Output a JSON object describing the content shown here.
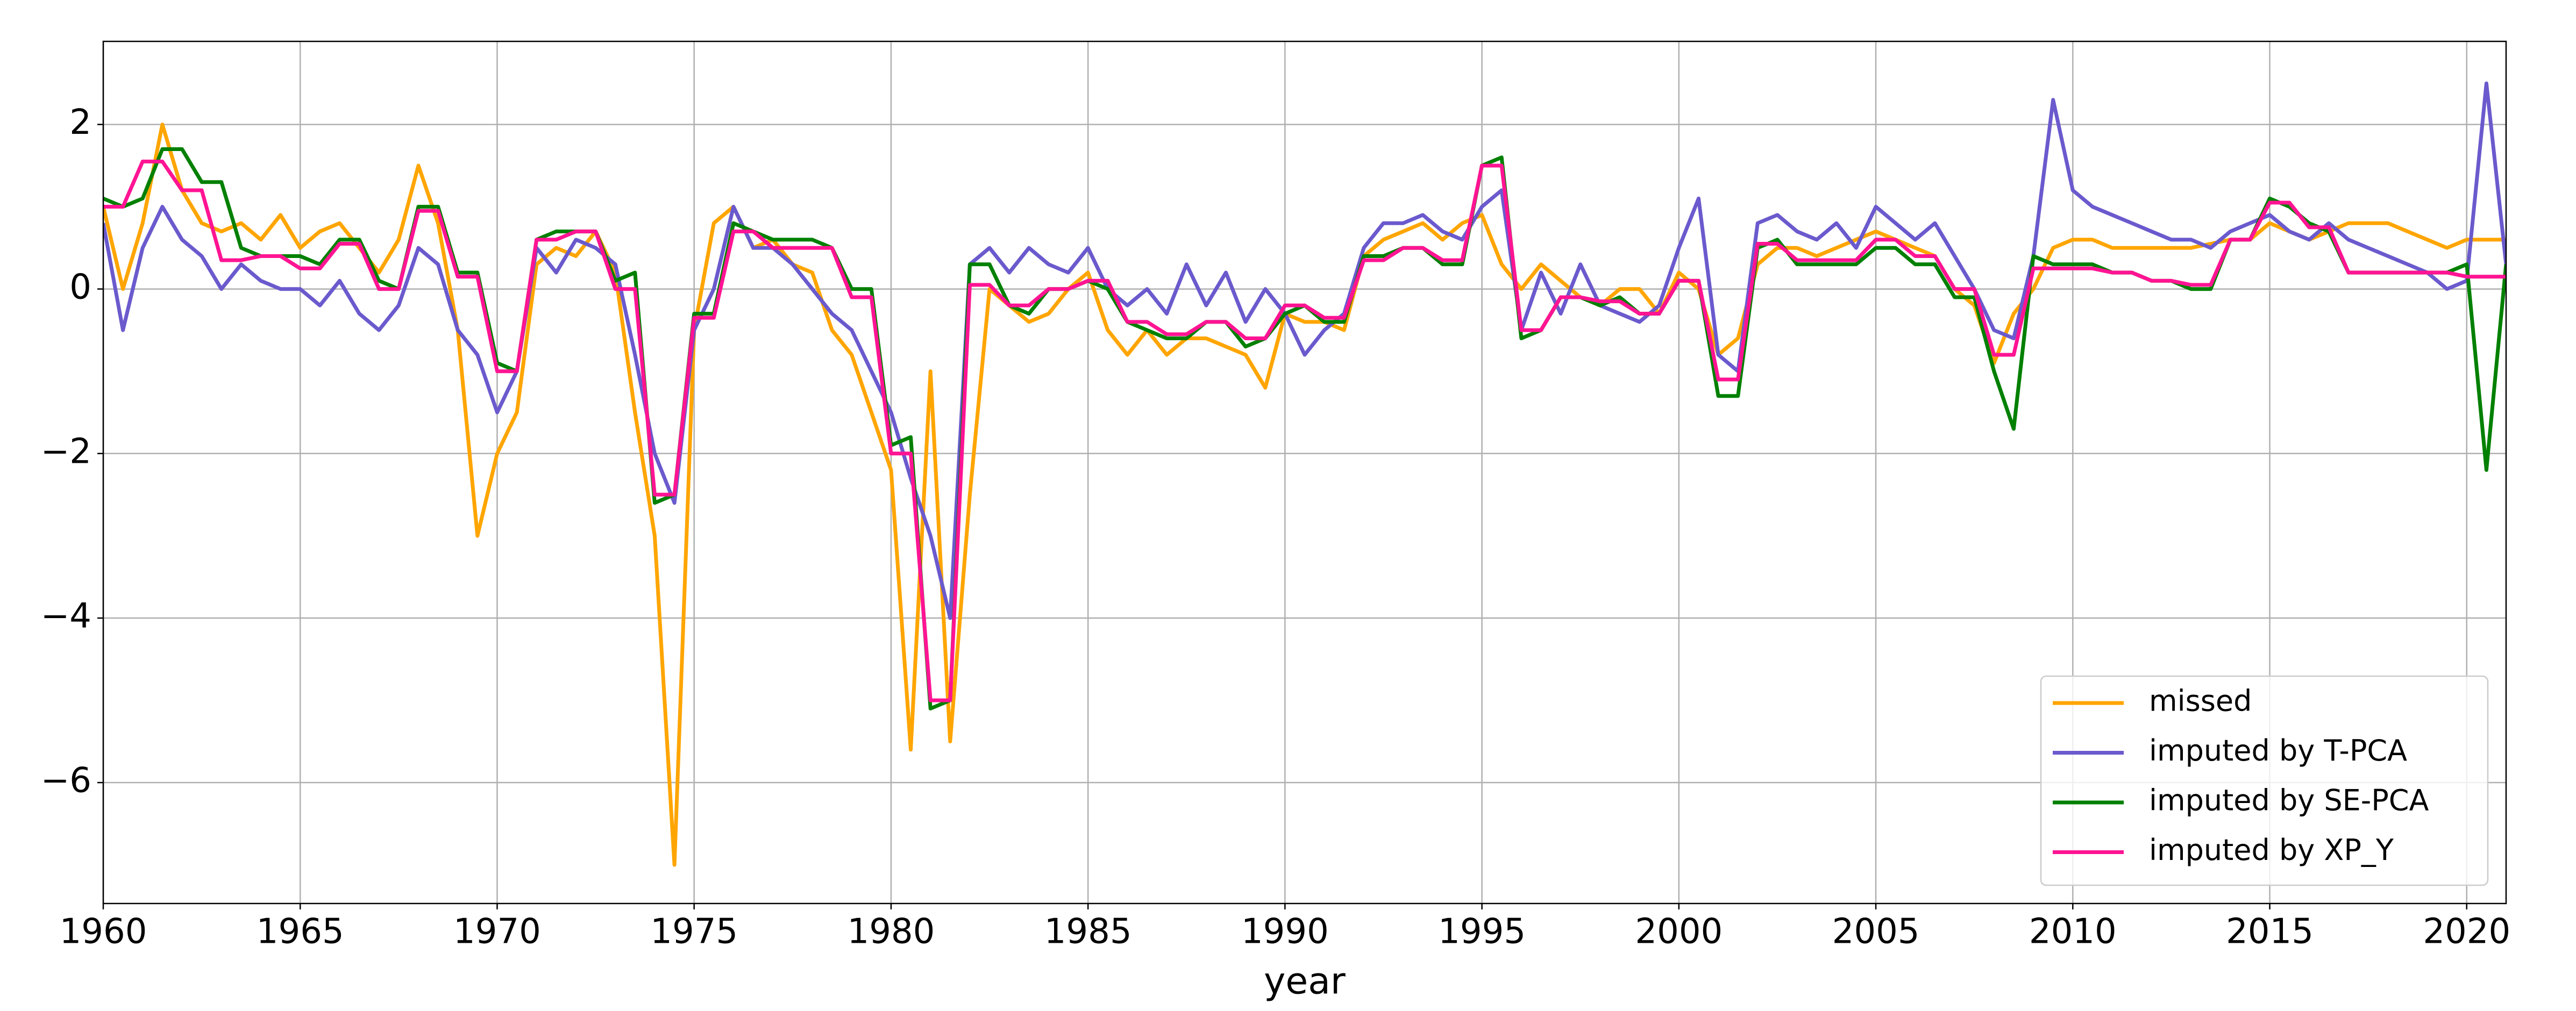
{
  "chart_data": {
    "type": "line",
    "xlabel": "year",
    "xlim": [
      1960,
      2021
    ],
    "ylim": [
      -7.47,
      3.01
    ],
    "xticks": [
      1960,
      1965,
      1970,
      1975,
      1980,
      1985,
      1990,
      1995,
      2000,
      2005,
      2010,
      2015,
      2020
    ],
    "yticks": [
      {
        "value": -6,
        "label": "−6"
      },
      {
        "value": -4,
        "label": "−4"
      },
      {
        "value": -2,
        "label": "−2"
      },
      0,
      2
    ],
    "grid": true,
    "legend": "lower right",
    "x": [
      1960,
      1960.5,
      1961,
      1961.5,
      1962,
      1962.5,
      1963,
      1963.5,
      1964,
      1964.5,
      1965,
      1965.5,
      1966,
      1966.5,
      1967,
      1967.5,
      1968,
      1968.5,
      1969,
      1969.5,
      1970,
      1970.5,
      1971,
      1971.5,
      1972,
      1972.5,
      1973,
      1973.5,
      1974,
      1974.5,
      1975,
      1975.5,
      1976,
      1976.5,
      1977,
      1977.5,
      1978,
      1978.5,
      1979,
      1979.5,
      1980,
      1980.5,
      1981,
      1981.5,
      1982,
      1982.5,
      1983,
      1983.5,
      1984,
      1984.5,
      1985,
      1985.5,
      1986,
      1986.5,
      1987,
      1987.5,
      1988,
      1988.5,
      1989,
      1989.5,
      1990,
      1990.5,
      1991,
      1991.5,
      1992,
      1992.5,
      1993,
      1993.5,
      1994,
      1994.5,
      1995,
      1995.5,
      1996,
      1996.5,
      1997,
      1997.5,
      1998,
      1998.5,
      1999,
      1999.5,
      2000,
      2000.5,
      2001,
      2001.5,
      2002,
      2002.5,
      2003,
      2003.5,
      2004,
      2004.5,
      2005,
      2005.5,
      2006,
      2006.5,
      2007,
      2007.5,
      2008,
      2008.5,
      2009,
      2009.5,
      2010,
      2010.5,
      2011,
      2011.5,
      2012,
      2012.5,
      2013,
      2013.5,
      2014,
      2014.5,
      2015,
      2015.5,
      2016,
      2016.5,
      2017,
      2017.5,
      2018,
      2018.5,
      2019,
      2019.5,
      2020,
      2020.5,
      2021
    ],
    "series": [
      {
        "name": "missed",
        "color": "#ffa500",
        "values": [
          1.0,
          0.0,
          0.8,
          2.0,
          1.2,
          0.8,
          0.7,
          0.8,
          0.6,
          0.9,
          0.5,
          0.7,
          0.8,
          0.5,
          0.2,
          0.6,
          1.5,
          0.8,
          -0.5,
          -3.0,
          -2.0,
          -1.5,
          0.3,
          0.5,
          0.4,
          0.7,
          0.2,
          -1.5,
          -3.0,
          -7.0,
          -0.5,
          0.8,
          1.0,
          0.5,
          0.6,
          0.3,
          0.2,
          -0.5,
          -0.8,
          -1.5,
          -2.2,
          -5.6,
          -1.0,
          -5.5,
          -2.5,
          0.0,
          -0.2,
          -0.4,
          -0.3,
          0.0,
          0.2,
          -0.5,
          -0.8,
          -0.5,
          -0.8,
          -0.6,
          -0.6,
          -0.7,
          -0.8,
          -1.2,
          -0.3,
          -0.4,
          -0.4,
          -0.5,
          0.4,
          0.6,
          0.7,
          0.8,
          0.6,
          0.8,
          0.9,
          0.3,
          0.0,
          0.3,
          0.1,
          -0.1,
          -0.2,
          0.0,
          0.0,
          -0.3,
          0.2,
          0.0,
          -0.8,
          -0.6,
          0.3,
          0.5,
          0.5,
          0.4,
          0.5,
          0.6,
          0.7,
          0.6,
          0.5,
          0.4,
          0.0,
          -0.2,
          -0.9,
          -0.3,
          0.0,
          0.5,
          0.6,
          0.6,
          0.5,
          0.5,
          0.5,
          0.5,
          0.5,
          0.55,
          0.6,
          0.6,
          0.8,
          0.7,
          0.6,
          0.7,
          0.8,
          0.8,
          0.8,
          0.7,
          0.6,
          0.5,
          0.6,
          0.6,
          0.6
        ]
      },
      {
        "name": "imputed by T-PCA",
        "color": "#6a5acd",
        "values": [
          0.8,
          -0.5,
          0.5,
          1.0,
          0.6,
          0.4,
          0.0,
          0.3,
          0.1,
          0.0,
          0.0,
          -0.2,
          0.1,
          -0.3,
          -0.5,
          -0.2,
          0.5,
          0.3,
          -0.5,
          -0.8,
          -1.5,
          -1.0,
          0.5,
          0.2,
          0.6,
          0.5,
          0.3,
          -0.8,
          -2.0,
          -2.6,
          -0.5,
          0.0,
          1.0,
          0.5,
          0.5,
          0.3,
          0.0,
          -0.3,
          -0.5,
          -1.0,
          -1.5,
          -2.3,
          -3.0,
          -4.0,
          0.3,
          0.5,
          0.2,
          0.5,
          0.3,
          0.2,
          0.5,
          0.0,
          -0.2,
          0.0,
          -0.3,
          0.3,
          -0.2,
          0.2,
          -0.4,
          0.0,
          -0.3,
          -0.8,
          -0.5,
          -0.3,
          0.5,
          0.8,
          0.8,
          0.9,
          0.7,
          0.6,
          1.0,
          1.2,
          -0.5,
          0.2,
          -0.3,
          0.3,
          -0.2,
          -0.3,
          -0.4,
          -0.2,
          0.5,
          1.1,
          -0.8,
          -1.0,
          0.8,
          0.9,
          0.7,
          0.6,
          0.8,
          0.5,
          1.0,
          0.8,
          0.6,
          0.8,
          0.4,
          0.0,
          -0.5,
          -0.6,
          0.4,
          2.3,
          1.2,
          1.0,
          0.9,
          0.8,
          0.7,
          0.6,
          0.6,
          0.5,
          0.7,
          0.8,
          0.9,
          0.7,
          0.6,
          0.8,
          0.6,
          0.5,
          0.4,
          0.3,
          0.2,
          0.0,
          0.1,
          2.5,
          0.3
        ]
      },
      {
        "name": "imputed by SE-PCA",
        "color": "#008000",
        "values": [
          1.1,
          1.0,
          1.1,
          1.7,
          1.7,
          1.3,
          1.3,
          0.5,
          0.4,
          0.4,
          0.4,
          0.3,
          0.6,
          0.6,
          0.1,
          0.0,
          1.0,
          1.0,
          0.2,
          0.2,
          -0.9,
          -1.0,
          0.6,
          0.7,
          0.7,
          0.7,
          0.1,
          0.2,
          -2.6,
          -2.5,
          -0.3,
          -0.3,
          0.8,
          0.7,
          0.6,
          0.6,
          0.6,
          0.5,
          0.0,
          0.0,
          -1.9,
          -1.8,
          -5.1,
          -5.0,
          0.3,
          0.3,
          -0.2,
          -0.3,
          0.0,
          0.0,
          0.1,
          0.0,
          -0.4,
          -0.5,
          -0.6,
          -0.6,
          -0.4,
          -0.4,
          -0.7,
          -0.6,
          -0.3,
          -0.2,
          -0.4,
          -0.4,
          0.4,
          0.4,
          0.5,
          0.5,
          0.3,
          0.3,
          1.5,
          1.6,
          -0.6,
          -0.5,
          -0.1,
          -0.1,
          -0.2,
          -0.1,
          -0.3,
          -0.3,
          0.1,
          0.1,
          -1.3,
          -1.3,
          0.5,
          0.6,
          0.3,
          0.3,
          0.3,
          0.3,
          0.5,
          0.5,
          0.3,
          0.3,
          -0.1,
          -0.1,
          -1.0,
          -1.7,
          0.4,
          0.3,
          0.3,
          0.3,
          0.2,
          0.2,
          0.1,
          0.1,
          0.0,
          0.0,
          0.6,
          0.6,
          1.1,
          1.0,
          0.8,
          0.7,
          0.2,
          0.2,
          0.2,
          0.2,
          0.2,
          0.2,
          0.3,
          -2.2,
          0.3
        ]
      },
      {
        "name": "imputed by XP_Y",
        "color": "#ff1493",
        "values": [
          1.0,
          1.0,
          1.55,
          1.55,
          1.2,
          1.2,
          0.35,
          0.35,
          0.4,
          0.4,
          0.25,
          0.25,
          0.55,
          0.55,
          0.0,
          0.0,
          0.95,
          0.95,
          0.15,
          0.15,
          -1.0,
          -1.0,
          0.6,
          0.6,
          0.7,
          0.7,
          0.0,
          0.0,
          -2.5,
          -2.5,
          -0.35,
          -0.35,
          0.7,
          0.7,
          0.5,
          0.5,
          0.5,
          0.5,
          -0.1,
          -0.1,
          -2.0,
          -2.0,
          -5.0,
          -5.0,
          0.05,
          0.05,
          -0.2,
          -0.2,
          0.0,
          0.0,
          0.1,
          0.1,
          -0.4,
          -0.4,
          -0.55,
          -0.55,
          -0.4,
          -0.4,
          -0.6,
          -0.6,
          -0.2,
          -0.2,
          -0.35,
          -0.35,
          0.35,
          0.35,
          0.5,
          0.5,
          0.35,
          0.35,
          1.5,
          1.5,
          -0.5,
          -0.5,
          -0.1,
          -0.1,
          -0.15,
          -0.15,
          -0.3,
          -0.3,
          0.1,
          0.1,
          -1.1,
          -1.1,
          0.55,
          0.55,
          0.35,
          0.35,
          0.35,
          0.35,
          0.6,
          0.6,
          0.4,
          0.4,
          0.0,
          0.0,
          -0.8,
          -0.8,
          0.25,
          0.25,
          0.25,
          0.25,
          0.2,
          0.2,
          0.1,
          0.1,
          0.05,
          0.05,
          0.6,
          0.6,
          1.05,
          1.05,
          0.75,
          0.75,
          0.2,
          0.2,
          0.2,
          0.2,
          0.2,
          0.2,
          0.15,
          0.15,
          0.15
        ]
      }
    ]
  }
}
